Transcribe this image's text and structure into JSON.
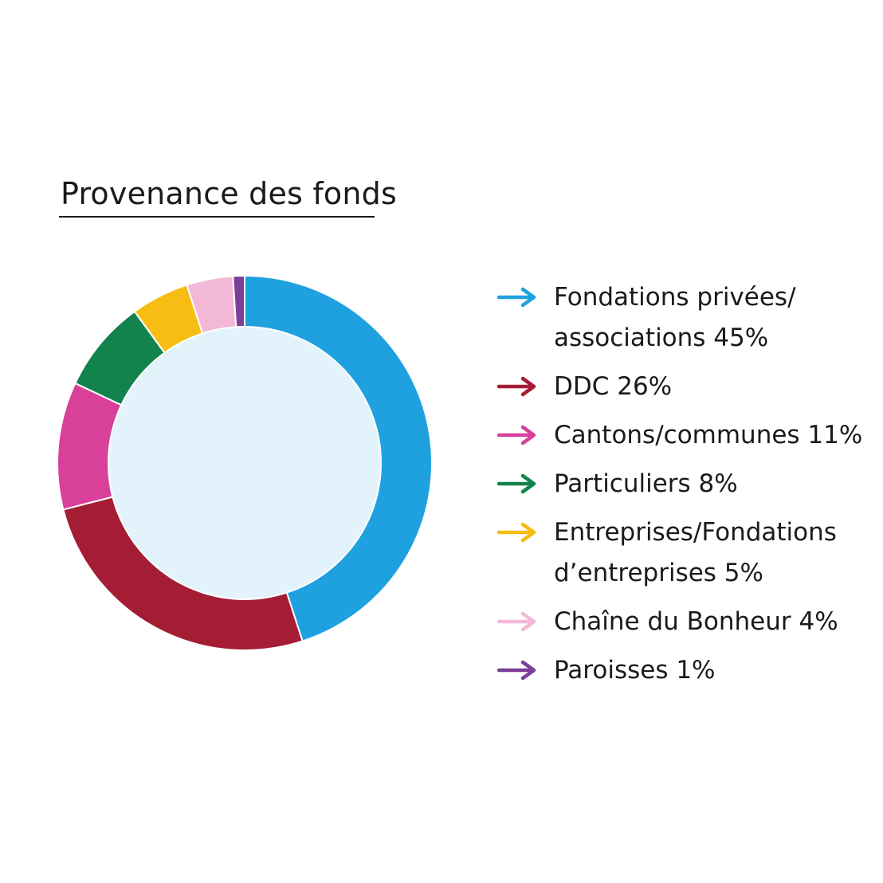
{
  "chart_data": {
    "type": "pie",
    "style": "donut",
    "title": "Provenance des fonds",
    "legend_placement": "right",
    "slices": [
      {
        "label": "Fondations privées/\nassociations  45%",
        "value": 45,
        "color": "#1fa1e0"
      },
      {
        "label": "DDC 26%",
        "value": 26,
        "color": "#a51d35"
      },
      {
        "label": "Cantons/communes  11%",
        "value": 11,
        "color": "#d8409a"
      },
      {
        "label": "Particuliers 8%",
        "value": 8,
        "color": "#12834d"
      },
      {
        "label": "Entreprises/Fondations\nd’entreprises 5%",
        "value": 5,
        "color": "#f7bd12"
      },
      {
        "label": "Chaîne du Bonheur 4%",
        "value": 4,
        "color": "#f3b8d8"
      },
      {
        "label": "Paroisses 1%",
        "value": 1,
        "color": "#7c3f98"
      }
    ],
    "center_color": "#e3f3fb"
  }
}
